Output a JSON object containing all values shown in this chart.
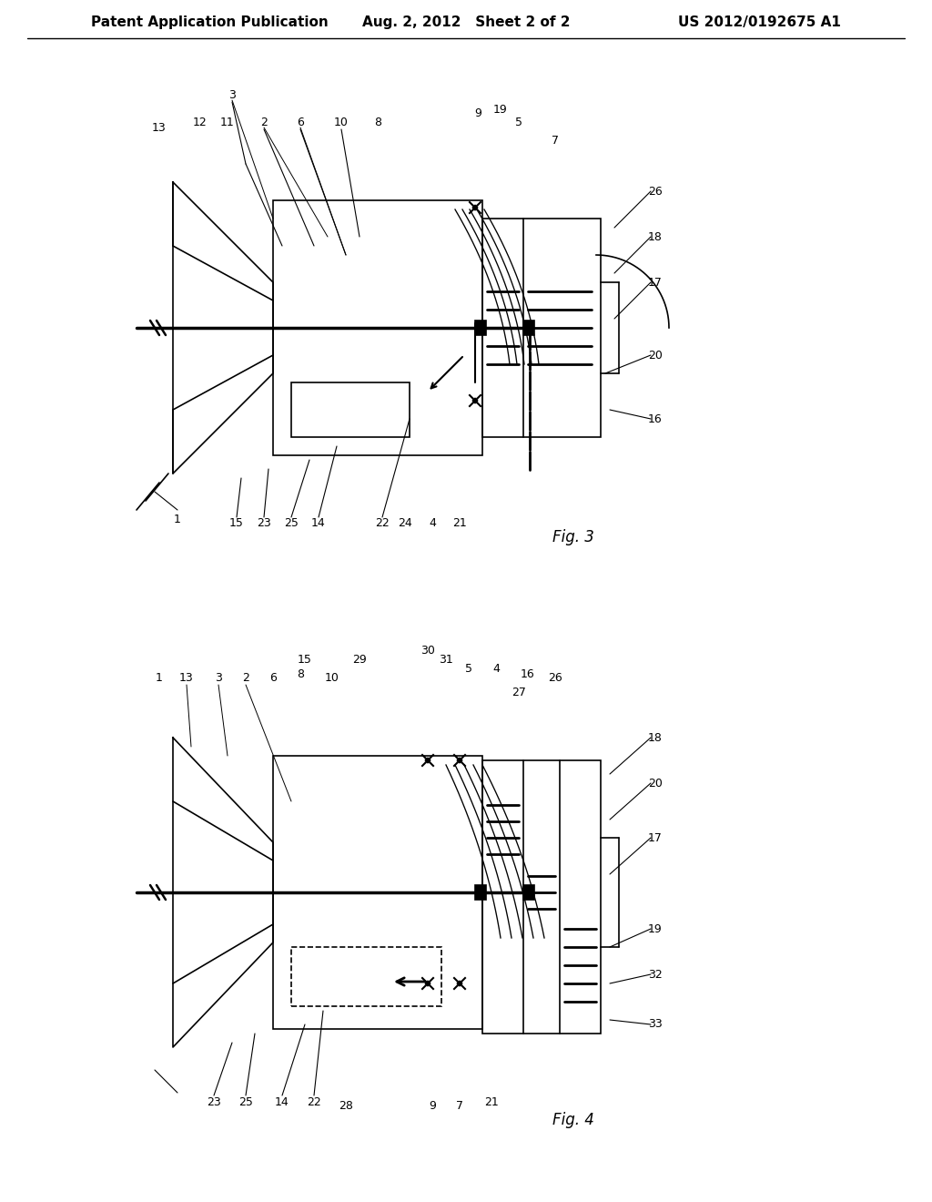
{
  "header_left": "Patent Application Publication",
  "header_center": "Aug. 2, 2012   Sheet 2 of 2",
  "header_right": "US 2012/0192675 A1",
  "fig3_label": "Fig. 3",
  "fig4_label": "Fig. 4",
  "bg_color": "#ffffff",
  "line_color": "#000000",
  "font_size_header": 11,
  "font_size_label": 9,
  "font_size_fig": 12
}
